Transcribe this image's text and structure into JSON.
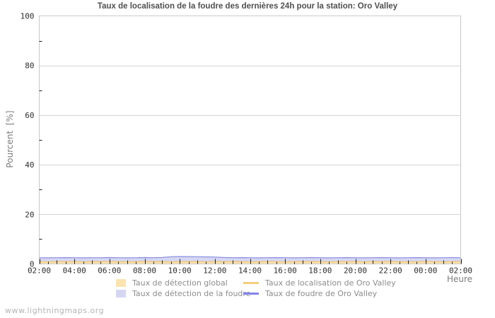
{
  "watermark": "www.lightningmaps.org",
  "chart_data": {
    "type": "area",
    "title": "Taux de localisation de la foudre des dernières 24h pour la station: Oro Valley",
    "xlabel": "Heure",
    "ylabel": "Pourcent  [%]",
    "ylim": [
      0,
      100
    ],
    "y_ticks": [
      0,
      20,
      40,
      60,
      80,
      100
    ],
    "y_minor_ticks": [
      10,
      30,
      50,
      70,
      90
    ],
    "grid": "horizontal-major",
    "x_start": "02:00",
    "x_end": "02:00",
    "x_step_minutes": 30,
    "x_tick_labels": [
      "02:00",
      "04:00",
      "06:00",
      "08:00",
      "10:00",
      "12:00",
      "14:00",
      "16:00",
      "18:00",
      "20:00",
      "22:00",
      "00:00",
      "02:00"
    ],
    "series": [
      {
        "name": "Taux de détection global",
        "kind": "area",
        "color": "#fbe3b2",
        "values": [
          0.9,
          0.85,
          0.9,
          0.95,
          0.9,
          0.85,
          0.9,
          0.9,
          0.95,
          0.9,
          0.85,
          0.9,
          0.95,
          0.9,
          0.9,
          0.85,
          0.9,
          0.95,
          0.9,
          0.85,
          0.9,
          0.9,
          0.95,
          0.9,
          0.85,
          0.9,
          0.95,
          0.9,
          0.85,
          0.9,
          0.9,
          0.95,
          0.9,
          0.85,
          0.9,
          0.95,
          0.9,
          0.85,
          0.9,
          0.9,
          0.95,
          0.9,
          0.85,
          0.9,
          0.95,
          0.9,
          0.85,
          0.9,
          0.9
        ]
      },
      {
        "name": "Taux de détection de la foudre",
        "kind": "area",
        "color": "#d5d7f2",
        "values": [
          2.5,
          2.45,
          2.5,
          2.55,
          2.5,
          2.45,
          2.5,
          2.5,
          2.55,
          2.5,
          2.45,
          2.5,
          2.55,
          2.5,
          2.6,
          2.9,
          3.0,
          2.95,
          2.9,
          2.85,
          2.8,
          2.6,
          2.5,
          2.55,
          2.5,
          2.45,
          2.5,
          2.55,
          2.5,
          2.45,
          2.5,
          2.55,
          2.5,
          2.45,
          2.5,
          2.55,
          2.5,
          2.45,
          2.5,
          2.55,
          2.5,
          2.45,
          2.5,
          2.55,
          2.5,
          2.45,
          2.5,
          2.55,
          2.5
        ]
      },
      {
        "name": "Taux de localisation de Oro Valley",
        "kind": "line",
        "color": "#f0c678",
        "values": [
          0.9,
          0.85,
          0.9,
          0.95,
          0.9,
          0.85,
          0.9,
          0.9,
          0.95,
          0.9,
          0.85,
          0.9,
          0.95,
          0.9,
          0.9,
          0.85,
          0.9,
          0.95,
          0.9,
          0.85,
          0.9,
          0.9,
          0.95,
          0.9,
          0.85,
          0.9,
          0.95,
          0.9,
          0.85,
          0.9,
          0.9,
          0.95,
          0.9,
          0.85,
          0.9,
          0.95,
          0.9,
          0.85,
          0.9,
          0.9,
          0.95,
          0.9,
          0.85,
          0.9,
          0.95,
          0.9,
          0.85,
          0.9,
          0.9
        ]
      },
      {
        "name": "Taux de foudre de Oro Valley",
        "kind": "line",
        "color": "#8a8ddf",
        "values": [
          2.5,
          2.45,
          2.5,
          2.55,
          2.5,
          2.45,
          2.5,
          2.5,
          2.55,
          2.5,
          2.45,
          2.5,
          2.55,
          2.5,
          2.6,
          2.9,
          3.0,
          2.95,
          2.9,
          2.85,
          2.8,
          2.6,
          2.5,
          2.55,
          2.5,
          2.45,
          2.5,
          2.55,
          2.5,
          2.45,
          2.5,
          2.55,
          2.5,
          2.45,
          2.5,
          2.55,
          2.5,
          2.45,
          2.5,
          2.55,
          2.5,
          2.45,
          2.5,
          2.55,
          2.5,
          2.45,
          2.5,
          2.55,
          2.5
        ]
      }
    ],
    "legend": {
      "position": "bottom",
      "items": [
        {
          "label": "Taux de détection global",
          "swatch": "area",
          "color": "#fbe3b2"
        },
        {
          "label": "Taux de détection de la foudre",
          "swatch": "area",
          "color": "#d5d7f2"
        },
        {
          "label": "Taux de localisation de Oro Valley",
          "swatch": "line",
          "color": "#f5cd7e"
        },
        {
          "label": "Taux de foudre de Oro Valley",
          "swatch": "line",
          "color": "#8285e8"
        }
      ]
    },
    "colors": {
      "plot_border": "#c8c8c8",
      "grid_line": "#d4d4d4",
      "tick": "#1e1e1e",
      "tick_label": "#2e2e2e"
    }
  }
}
